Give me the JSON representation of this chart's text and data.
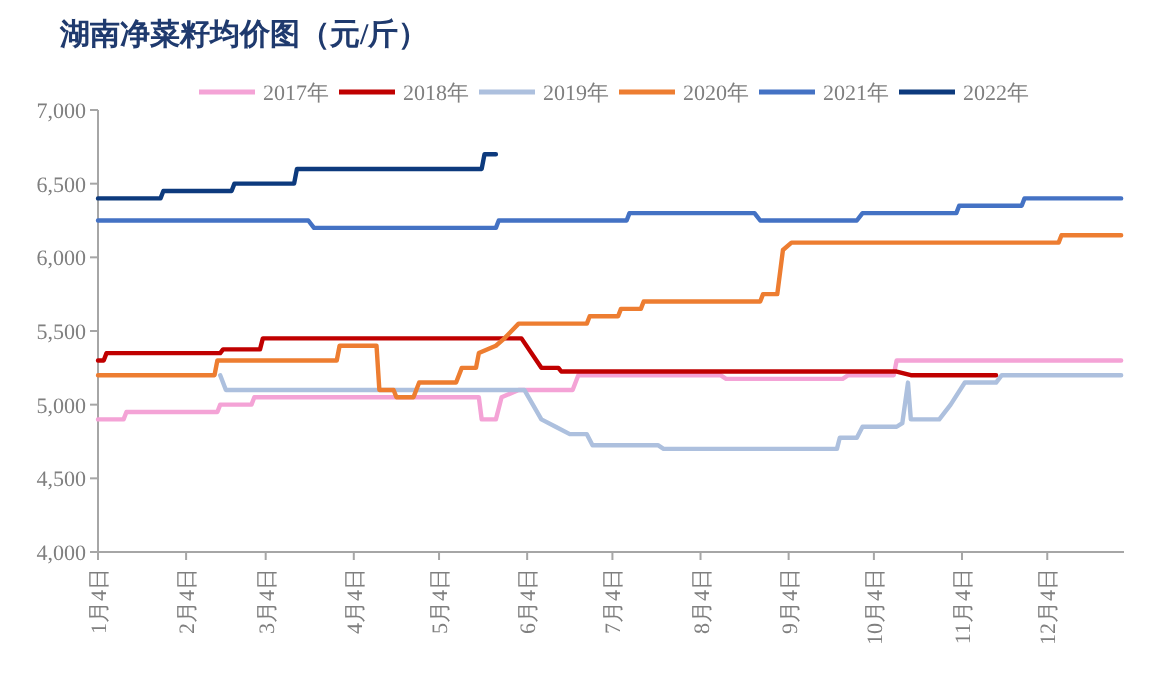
{
  "chart_data": {
    "type": "line",
    "title": "湖南净菜籽均价图（元/斤）",
    "legend": "top",
    "grid": false,
    "marker": "none",
    "line_style": "solid",
    "xlim": [
      "--01-04",
      "--12-31"
    ],
    "ylim": [
      4000,
      7000
    ],
    "xticks": [
      {
        "value": "--01-04",
        "label": "1月4日"
      },
      {
        "value": "--02-04",
        "label": "2月4日"
      },
      {
        "value": "--03-04",
        "label": "3月4日"
      },
      {
        "value": "--04-04",
        "label": "4月4日"
      },
      {
        "value": "--05-04",
        "label": "5月4日"
      },
      {
        "value": "--06-04",
        "label": "6月4日"
      },
      {
        "value": "--07-04",
        "label": "7月4日"
      },
      {
        "value": "--08-04",
        "label": "8月4日"
      },
      {
        "value": "--09-04",
        "label": "9月4日"
      },
      {
        "value": "--10-04",
        "label": "10月4日"
      },
      {
        "value": "--11-04",
        "label": "11月4日"
      },
      {
        "value": "--12-04",
        "label": "12月4日"
      }
    ],
    "yticks": [
      {
        "value": 4000,
        "label": "4,000"
      },
      {
        "value": 4500,
        "label": "4,500"
      },
      {
        "value": 5000,
        "label": "5,000"
      },
      {
        "value": 5500,
        "label": "5,500"
      },
      {
        "value": 6000,
        "label": "6,000"
      },
      {
        "value": 6500,
        "label": "6,500"
      },
      {
        "value": 7000,
        "label": "7,000"
      }
    ],
    "series": [
      {
        "name": "2017年",
        "color": "#f4a3d6",
        "x": [
          "--01-04",
          "--01-13",
          "--01-14",
          "--02-15",
          "--02-16",
          "--02-27",
          "--02-28",
          "--05-18",
          "--05-19",
          "--05-24",
          "--05-26",
          "--06-01",
          "--06-20",
          "--06-22",
          "--08-11",
          "--08-13",
          "--09-23",
          "--09-25",
          "--10-11",
          "--10-12",
          "--12-30"
        ],
        "values": [
          4900,
          4900,
          4950,
          4950,
          5000,
          5000,
          5050,
          5050,
          4900,
          4900,
          5050,
          5100,
          5100,
          5200,
          5200,
          5175,
          5175,
          5200,
          5200,
          5300,
          5300
        ]
      },
      {
        "name": "2018年",
        "color": "#c00000",
        "x": [
          "--01-04",
          "--01-06",
          "--01-07",
          "--02-16",
          "--02-17",
          "--03-02",
          "--03-03",
          "--06-02",
          "--06-09",
          "--06-15",
          "--06-16",
          "--10-12",
          "--10-17",
          "--11-16"
        ],
        "values": [
          5300,
          5300,
          5350,
          5350,
          5375,
          5375,
          5450,
          5450,
          5250,
          5250,
          5225,
          5225,
          5200,
          5200
        ]
      },
      {
        "name": "2019年",
        "color": "#adc0de",
        "x": [
          "--02-16",
          "--02-18",
          "--06-03",
          "--06-09",
          "--06-14",
          "--06-19",
          "--06-25",
          "--06-27",
          "--07-20",
          "--07-22",
          "--09-21",
          "--09-22",
          "--09-28",
          "--09-30",
          "--10-12",
          "--10-14",
          "--10-16",
          "--10-17",
          "--10-27",
          "--10-31",
          "--11-05",
          "--11-16",
          "--11-18",
          "--12-30"
        ],
        "values": [
          5200,
          5100,
          5100,
          4900,
          4850,
          4800,
          4800,
          4725,
          4725,
          4700,
          4700,
          4775,
          4775,
          4850,
          4850,
          4875,
          5150,
          4900,
          4900,
          5000,
          5150,
          5150,
          5200,
          5200
        ]
      },
      {
        "name": "2020年",
        "color": "#ed7d31",
        "x": [
          "--01-04",
          "--02-14",
          "--02-15",
          "--03-29",
          "--03-30",
          "--04-12",
          "--04-13",
          "--04-18",
          "--04-19",
          "--04-25",
          "--04-27",
          "--05-10",
          "--05-12",
          "--05-17",
          "--05-18",
          "--05-24",
          "--05-27",
          "--06-01",
          "--06-25",
          "--06-26",
          "--07-06",
          "--07-07",
          "--07-14",
          "--07-15",
          "--08-25",
          "--08-26",
          "--08-31",
          "--09-02",
          "--09-05",
          "--12-08",
          "--12-09",
          "--12-30"
        ],
        "values": [
          5200,
          5200,
          5300,
          5300,
          5400,
          5400,
          5100,
          5100,
          5050,
          5050,
          5150,
          5150,
          5250,
          5250,
          5350,
          5400,
          5450,
          5550,
          5550,
          5600,
          5600,
          5650,
          5650,
          5700,
          5700,
          5750,
          5750,
          6050,
          6100,
          6100,
          6150,
          6150
        ]
      },
      {
        "name": "2021年",
        "color": "#4472c4",
        "x": [
          "--01-04",
          "--03-19",
          "--03-21",
          "--05-24",
          "--05-25",
          "--07-09",
          "--07-10",
          "--08-23",
          "--08-25",
          "--09-28",
          "--09-30",
          "--11-02",
          "--11-03",
          "--11-25",
          "--11-26",
          "--12-30"
        ],
        "values": [
          6250,
          6250,
          6200,
          6200,
          6250,
          6250,
          6300,
          6300,
          6250,
          6250,
          6300,
          6300,
          6350,
          6350,
          6400,
          6400
        ]
      },
      {
        "name": "2022年",
        "color": "#0d3a7d",
        "x": [
          "--01-04",
          "--01-26",
          "--01-27",
          "--02-20",
          "--02-21",
          "--03-14",
          "--03-15",
          "--05-19",
          "--05-20",
          "--05-24"
        ],
        "values": [
          6400,
          6400,
          6450,
          6450,
          6500,
          6500,
          6600,
          6600,
          6700,
          6700
        ]
      }
    ]
  }
}
